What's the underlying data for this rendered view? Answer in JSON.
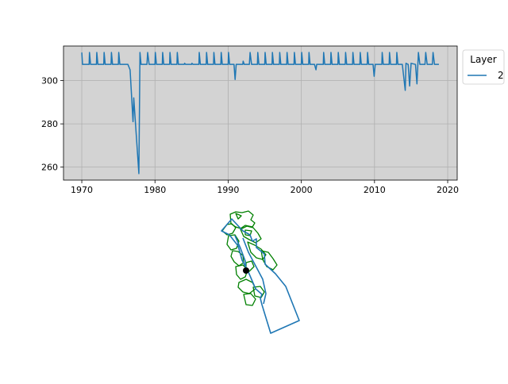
{
  "chart_data": [
    {
      "type": "line",
      "title": "",
      "xlabel": "",
      "ylabel": "",
      "xlim": [
        1967.5,
        2021.3
      ],
      "ylim": [
        254,
        316
      ],
      "xticks": [
        1970,
        1980,
        1990,
        2000,
        2010,
        2020
      ],
      "yticks": [
        260,
        280,
        300
      ],
      "grid": true,
      "background": "#d3d3d3",
      "legend": {
        "title": "Layer",
        "placement": "outside-top-right",
        "entries": [
          "2"
        ]
      },
      "series": [
        {
          "name": "2",
          "color": "#1f77b4",
          "points": [
            [
              1970.0,
              313
            ],
            [
              1970.1,
              307.5
            ],
            [
              1971.0,
              307.5
            ],
            [
              1971.05,
              313
            ],
            [
              1971.2,
              307.5
            ],
            [
              1972.0,
              307.5
            ],
            [
              1972.05,
              313
            ],
            [
              1972.2,
              307.5
            ],
            [
              1973.0,
              307.5
            ],
            [
              1973.05,
              313
            ],
            [
              1973.2,
              307.5
            ],
            [
              1974.0,
              307.5
            ],
            [
              1974.05,
              313
            ],
            [
              1974.2,
              307.5
            ],
            [
              1975.0,
              307.5
            ],
            [
              1975.05,
              313
            ],
            [
              1975.2,
              307.5
            ],
            [
              1976.0,
              307.5
            ],
            [
              1976.3,
              307.5
            ],
            [
              1976.6,
              305
            ],
            [
              1977.0,
              281
            ],
            [
              1977.1,
              292
            ],
            [
              1977.3,
              282
            ],
            [
              1977.8,
              257
            ],
            [
              1977.95,
              313
            ],
            [
              1978.1,
              307.5
            ],
            [
              1978.9,
              307.5
            ],
            [
              1979.0,
              313
            ],
            [
              1979.2,
              307.5
            ],
            [
              1980.0,
              307.5
            ],
            [
              1980.05,
              313
            ],
            [
              1980.2,
              307.5
            ],
            [
              1981.0,
              307.5
            ],
            [
              1981.05,
              313
            ],
            [
              1981.2,
              307.5
            ],
            [
              1982.0,
              307.5
            ],
            [
              1982.05,
              313
            ],
            [
              1982.2,
              307.5
            ],
            [
              1983.0,
              307.5
            ],
            [
              1983.05,
              313
            ],
            [
              1983.2,
              307.5
            ],
            [
              1984.0,
              307.5
            ],
            [
              1984.05,
              308
            ],
            [
              1984.2,
              307.5
            ],
            [
              1985.0,
              307.5
            ],
            [
              1985.05,
              308
            ],
            [
              1985.2,
              307.5
            ],
            [
              1986.0,
              307.5
            ],
            [
              1986.05,
              313
            ],
            [
              1986.2,
              307.5
            ],
            [
              1987.0,
              307.5
            ],
            [
              1987.05,
              313
            ],
            [
              1987.2,
              307.5
            ],
            [
              1988.0,
              307.5
            ],
            [
              1988.05,
              313
            ],
            [
              1988.2,
              307.5
            ],
            [
              1989.0,
              307.5
            ],
            [
              1989.05,
              313
            ],
            [
              1989.2,
              307.5
            ],
            [
              1990.0,
              307.5
            ],
            [
              1990.05,
              313
            ],
            [
              1990.2,
              307.5
            ],
            [
              1990.8,
              307.5
            ],
            [
              1990.95,
              300.5
            ],
            [
              1991.1,
              307.5
            ],
            [
              1992.0,
              307.5
            ],
            [
              1992.05,
              309
            ],
            [
              1992.2,
              307.5
            ],
            [
              1992.9,
              307.5
            ],
            [
              1993.0,
              313
            ],
            [
              1993.2,
              307.5
            ],
            [
              1994.0,
              307.5
            ],
            [
              1994.05,
              313
            ],
            [
              1994.2,
              307.5
            ],
            [
              1995.0,
              307.5
            ],
            [
              1995.05,
              313
            ],
            [
              1995.2,
              307.5
            ],
            [
              1996.0,
              307.5
            ],
            [
              1996.05,
              313
            ],
            [
              1996.2,
              307.5
            ],
            [
              1997.0,
              307.5
            ],
            [
              1997.05,
              313
            ],
            [
              1997.2,
              307.5
            ],
            [
              1998.0,
              307.5
            ],
            [
              1998.05,
              313
            ],
            [
              1998.2,
              307.5
            ],
            [
              1999.0,
              307.5
            ],
            [
              1999.05,
              313
            ],
            [
              1999.2,
              307.5
            ],
            [
              2000.0,
              307.5
            ],
            [
              2000.05,
              313
            ],
            [
              2000.2,
              307.5
            ],
            [
              2001.0,
              307.5
            ],
            [
              2001.05,
              313
            ],
            [
              2001.2,
              307.5
            ],
            [
              2001.8,
              307.5
            ],
            [
              2002.0,
              305
            ],
            [
              2002.1,
              307.5
            ],
            [
              2003.0,
              307.5
            ],
            [
              2003.05,
              313
            ],
            [
              2003.2,
              307.5
            ],
            [
              2004.0,
              307.5
            ],
            [
              2004.05,
              313
            ],
            [
              2004.2,
              307.5
            ],
            [
              2005.0,
              307.5
            ],
            [
              2005.05,
              313
            ],
            [
              2005.2,
              307.5
            ],
            [
              2006.0,
              307.5
            ],
            [
              2006.05,
              313
            ],
            [
              2006.2,
              307.5
            ],
            [
              2007.0,
              307.5
            ],
            [
              2007.05,
              313
            ],
            [
              2007.2,
              307.5
            ],
            [
              2008.0,
              307.5
            ],
            [
              2008.05,
              313
            ],
            [
              2008.2,
              307.5
            ],
            [
              2009.0,
              307.5
            ],
            [
              2009.05,
              313
            ],
            [
              2009.2,
              307.5
            ],
            [
              2009.8,
              307.5
            ],
            [
              2009.95,
              302
            ],
            [
              2010.1,
              307.5
            ],
            [
              2011.0,
              307.5
            ],
            [
              2011.05,
              313
            ],
            [
              2011.2,
              307.5
            ],
            [
              2012.0,
              307.5
            ],
            [
              2012.05,
              313
            ],
            [
              2012.2,
              307.5
            ],
            [
              2013.0,
              307.5
            ],
            [
              2013.05,
              313
            ],
            [
              2013.2,
              307.5
            ],
            [
              2013.8,
              307.5
            ],
            [
              2014.2,
              295.5
            ],
            [
              2014.3,
              308
            ],
            [
              2014.6,
              307.5
            ],
            [
              2014.8,
              297.5
            ],
            [
              2015.0,
              308
            ],
            [
              2015.6,
              307.5
            ],
            [
              2015.8,
              298.5
            ],
            [
              2016.0,
              313
            ],
            [
              2016.2,
              307.5
            ],
            [
              2016.9,
              307.5
            ],
            [
              2017.0,
              313
            ],
            [
              2017.2,
              307.5
            ],
            [
              2017.9,
              307.5
            ],
            [
              2018.0,
              313
            ],
            [
              2018.2,
              307.5
            ],
            [
              2018.8,
              307.5
            ]
          ]
        }
      ]
    },
    {
      "type": "map",
      "title": "",
      "colors": {
        "polygons": "#008000",
        "outline": "#1f77b4",
        "marker": "#000000"
      },
      "marker": {
        "shape": "circle"
      }
    }
  ]
}
